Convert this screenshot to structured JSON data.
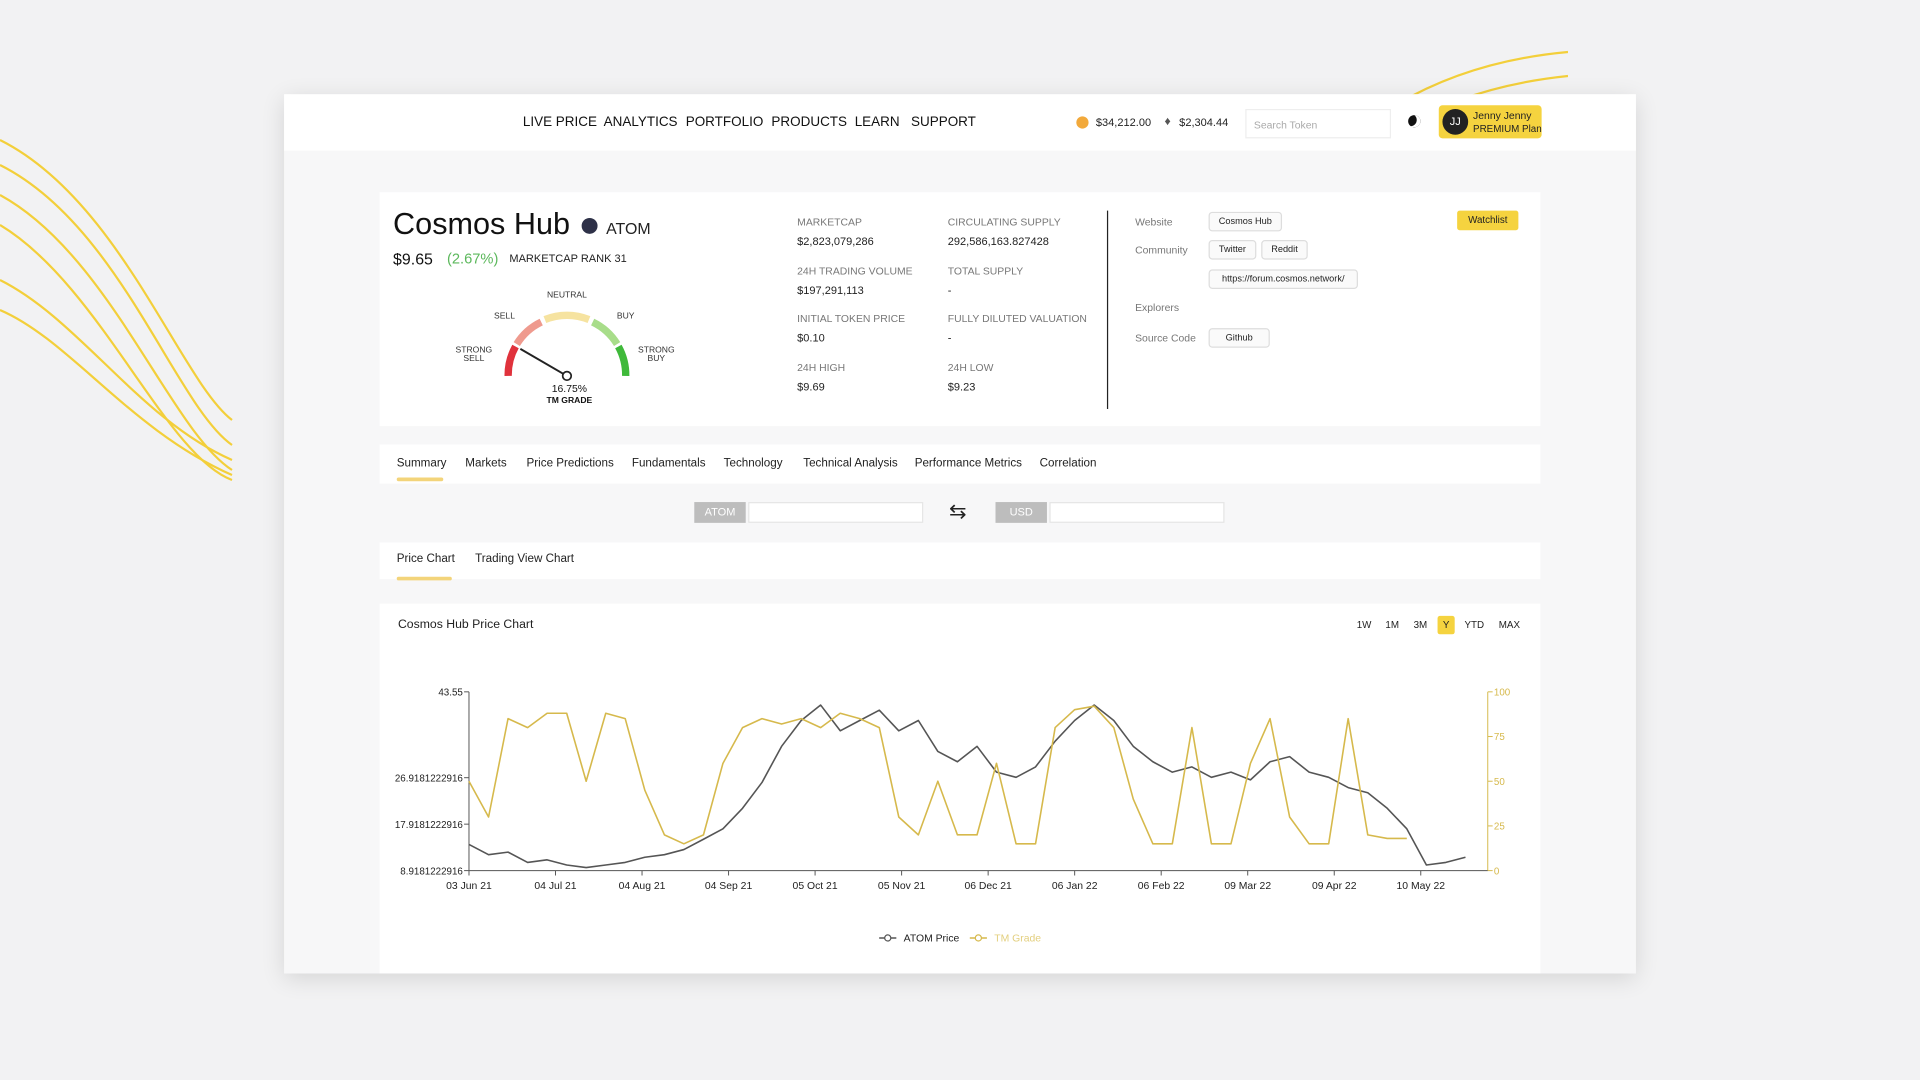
{
  "nav": {
    "items": [
      "LIVE PRICE",
      "ANALYTICS",
      "PORTFOLIO",
      "PRODUCTS",
      "LEARN",
      "SUPPORT"
    ],
    "btc_price": "$34,212.00",
    "eth_price": "$2,304.44",
    "search_placeholder": "Search Token",
    "user": {
      "initials": "JJ",
      "name": "Jenny Jenny",
      "plan": "PREMIUM Plan"
    }
  },
  "token": {
    "name": "Cosmos Hub",
    "symbol": "ATOM",
    "price": "$9.65",
    "change": "(2.67%)",
    "rank": "MARKETCAP RANK 31"
  },
  "gauge": {
    "value": 16.75,
    "value_label": "16.75%",
    "title": "TM GRADE",
    "labels": [
      "STRONG SELL",
      "SELL",
      "NEUTRAL",
      "BUY",
      "STRONG BUY"
    ]
  },
  "stats": [
    {
      "label": "MARKETCAP",
      "value": "$2,823,079,286"
    },
    {
      "label": "CIRCULATING SUPPLY",
      "value": "292,586,163.827428"
    },
    {
      "label": "24H TRADING VOLUME",
      "value": "$197,291,113"
    },
    {
      "label": "TOTAL SUPPLY",
      "value": "-"
    },
    {
      "label": "INITIAL TOKEN PRICE",
      "value": "$0.10"
    },
    {
      "label": "FULLY DILUTED VALUATION",
      "value": "-"
    },
    {
      "label": "24H HIGH",
      "value": "$9.69"
    },
    {
      "label": "24H LOW",
      "value": "$9.23"
    }
  ],
  "links": {
    "website_label": "Website",
    "website": "Cosmos Hub",
    "community_label": "Community",
    "community": [
      "Twitter",
      "Reddit",
      "https://forum.cosmos.network/"
    ],
    "explorers_label": "Explorers",
    "source_label": "Source Code",
    "source": "Github",
    "watchlist": "Watchlist"
  },
  "tabs": [
    "Summary",
    "Markets",
    "Price Predictions",
    "Fundamentals",
    "Technology",
    "Technical Analysis",
    "Performance Metrics",
    "Correlation"
  ],
  "converter": {
    "from": "ATOM",
    "to": "USD"
  },
  "chart_tabs": [
    "Price Chart",
    "Trading View Chart"
  ],
  "timeframes": [
    "1W",
    "1M",
    "3M",
    "Y",
    "YTD",
    "MAX"
  ],
  "active_timeframe": "Y",
  "chart_data": {
    "type": "line",
    "title": "Cosmos Hub Price Chart",
    "x": [
      "2021-06-03",
      "2021-06-10",
      "2021-06-17",
      "2021-06-24",
      "2021-07-01",
      "2021-07-08",
      "2021-07-15",
      "2021-07-22",
      "2021-07-29",
      "2021-08-05",
      "2021-08-12",
      "2021-08-19",
      "2021-08-26",
      "2021-09-02",
      "2021-09-09",
      "2021-09-16",
      "2021-09-23",
      "2021-09-30",
      "2021-10-07",
      "2021-10-14",
      "2021-10-21",
      "2021-10-28",
      "2021-11-04",
      "2021-11-11",
      "2021-11-18",
      "2021-11-25",
      "2021-12-02",
      "2021-12-09",
      "2021-12-16",
      "2021-12-23",
      "2021-12-30",
      "2022-01-06",
      "2022-01-13",
      "2022-01-20",
      "2022-01-27",
      "2022-02-03",
      "2022-02-10",
      "2022-02-17",
      "2022-02-24",
      "2022-03-03",
      "2022-03-10",
      "2022-03-17",
      "2022-03-24",
      "2022-03-31",
      "2022-04-07",
      "2022-04-14",
      "2022-04-21",
      "2022-04-28",
      "2022-05-05",
      "2022-05-12",
      "2022-05-19",
      "2022-05-26"
    ],
    "series": [
      {
        "name": "ATOM Price",
        "color": "#555555",
        "values": [
          14,
          12,
          12.5,
          10.5,
          11,
          10,
          9.5,
          10,
          10.5,
          11.5,
          12,
          13,
          15,
          17,
          21,
          26,
          33,
          38,
          41,
          36,
          38,
          40,
          36,
          38,
          32,
          30,
          33,
          28,
          27,
          29,
          34,
          38,
          41,
          38,
          33,
          30,
          28,
          29,
          27,
          28,
          26.5,
          30,
          31,
          28,
          27,
          25,
          24,
          21,
          17,
          10,
          10.5,
          11.5
        ]
      },
      {
        "name": "TM Grade",
        "color": "#d6b94c",
        "axis": "y2",
        "values": [
          50,
          30,
          85,
          80,
          88,
          88,
          50,
          88,
          85,
          45,
          20,
          15,
          20,
          60,
          80,
          85,
          82,
          85,
          80,
          88,
          85,
          80,
          30,
          20,
          50,
          20,
          20,
          60,
          15,
          15,
          80,
          90,
          92,
          80,
          40,
          15,
          15,
          80,
          15,
          15,
          60,
          85,
          30,
          15,
          15,
          85,
          20,
          18,
          18,
          null,
          null,
          null
        ]
      }
    ],
    "xlim": [
      "2021-06-03",
      "2022-06-03"
    ],
    "xticks": [
      {
        "value": "2021-06-03",
        "label": "03 Jun 21"
      },
      {
        "value": "2021-07-04",
        "label": "04 Jul 21"
      },
      {
        "value": "2021-08-04",
        "label": "04 Aug 21"
      },
      {
        "value": "2021-09-04",
        "label": "04 Sep 21"
      },
      {
        "value": "2021-10-05",
        "label": "05 Oct 21"
      },
      {
        "value": "2021-11-05",
        "label": "05 Nov 21"
      },
      {
        "value": "2021-12-06",
        "label": "06 Dec 21"
      },
      {
        "value": "2022-01-06",
        "label": "06 Jan 22"
      },
      {
        "value": "2022-02-06",
        "label": "06 Feb 22"
      },
      {
        "value": "2022-03-09",
        "label": "09 Mar 22"
      },
      {
        "value": "2022-04-09",
        "label": "09 Apr 22"
      },
      {
        "value": "2022-05-10",
        "label": "10 May 22"
      }
    ],
    "ylim": [
      8.9181222916,
      43.55
    ],
    "yticks": [
      8.9181222916,
      17.9181222916,
      26.9181222916,
      43.55
    ],
    "y2lim": [
      0,
      100
    ],
    "y2ticks": [
      0,
      25,
      50,
      75,
      100
    ],
    "y2_color": "#d6b94c",
    "grid": false,
    "legend": "bottom"
  }
}
